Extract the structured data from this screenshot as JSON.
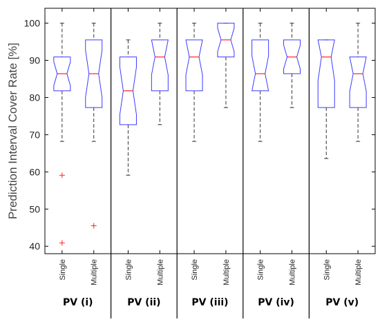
{
  "chart_data": {
    "type": "boxplot",
    "ylabel": "Prediction Interval Cover Rate [%]",
    "ylim": [
      38,
      104
    ],
    "yticks": [
      40,
      50,
      60,
      70,
      80,
      90,
      100
    ],
    "grid": false,
    "colors": {
      "box": "#3a3aff",
      "median": "#ff2222",
      "whisker": "#333333",
      "outlier": "#ff2222",
      "separator": "#000000"
    },
    "groups": [
      {
        "label": "PV (i)",
        "series": [
          {
            "name": "Single",
            "whisker_low": 68.2,
            "q1": 81.8,
            "median": 86.4,
            "q3": 90.9,
            "whisker_high": 100,
            "outliers": [
              59.1,
              40.9
            ]
          },
          {
            "name": "Multiple",
            "whisker_low": 68.2,
            "q1": 77.3,
            "median": 86.4,
            "q3": 95.5,
            "whisker_high": 100,
            "outliers": [
              45.5
            ]
          }
        ]
      },
      {
        "label": "PV (ii)",
        "series": [
          {
            "name": "Single",
            "whisker_low": 59.1,
            "q1": 72.7,
            "median": 81.8,
            "q3": 90.9,
            "whisker_high": 95.5,
            "outliers": []
          },
          {
            "name": "Multiple",
            "whisker_low": 72.7,
            "q1": 81.8,
            "median": 90.9,
            "q3": 95.5,
            "whisker_high": 100,
            "outliers": []
          }
        ]
      },
      {
        "label": "PV (iii)",
        "series": [
          {
            "name": "Single",
            "whisker_low": 68.2,
            "q1": 81.8,
            "median": 90.9,
            "q3": 95.5,
            "whisker_high": 100,
            "outliers": []
          },
          {
            "name": "Multiple",
            "whisker_low": 77.3,
            "q1": 90.9,
            "median": 95.5,
            "q3": 100,
            "whisker_high": 100,
            "outliers": []
          }
        ]
      },
      {
        "label": "PV (iv)",
        "series": [
          {
            "name": "Single",
            "whisker_low": 68.2,
            "q1": 81.8,
            "median": 86.4,
            "q3": 95.5,
            "whisker_high": 100,
            "outliers": []
          },
          {
            "name": "Multiple",
            "whisker_low": 77.3,
            "q1": 86.4,
            "median": 90.9,
            "q3": 95.5,
            "whisker_high": 100,
            "outliers": []
          }
        ]
      },
      {
        "label": "PV (v)",
        "series": [
          {
            "name": "Single",
            "whisker_low": 63.6,
            "q1": 77.3,
            "median": 90.9,
            "q3": 95.5,
            "whisker_high": 95.5,
            "outliers": []
          },
          {
            "name": "Multiple",
            "whisker_low": 68.2,
            "q1": 77.3,
            "median": 86.4,
            "q3": 90.9,
            "whisker_high": 100,
            "outliers": []
          }
        ]
      }
    ]
  }
}
